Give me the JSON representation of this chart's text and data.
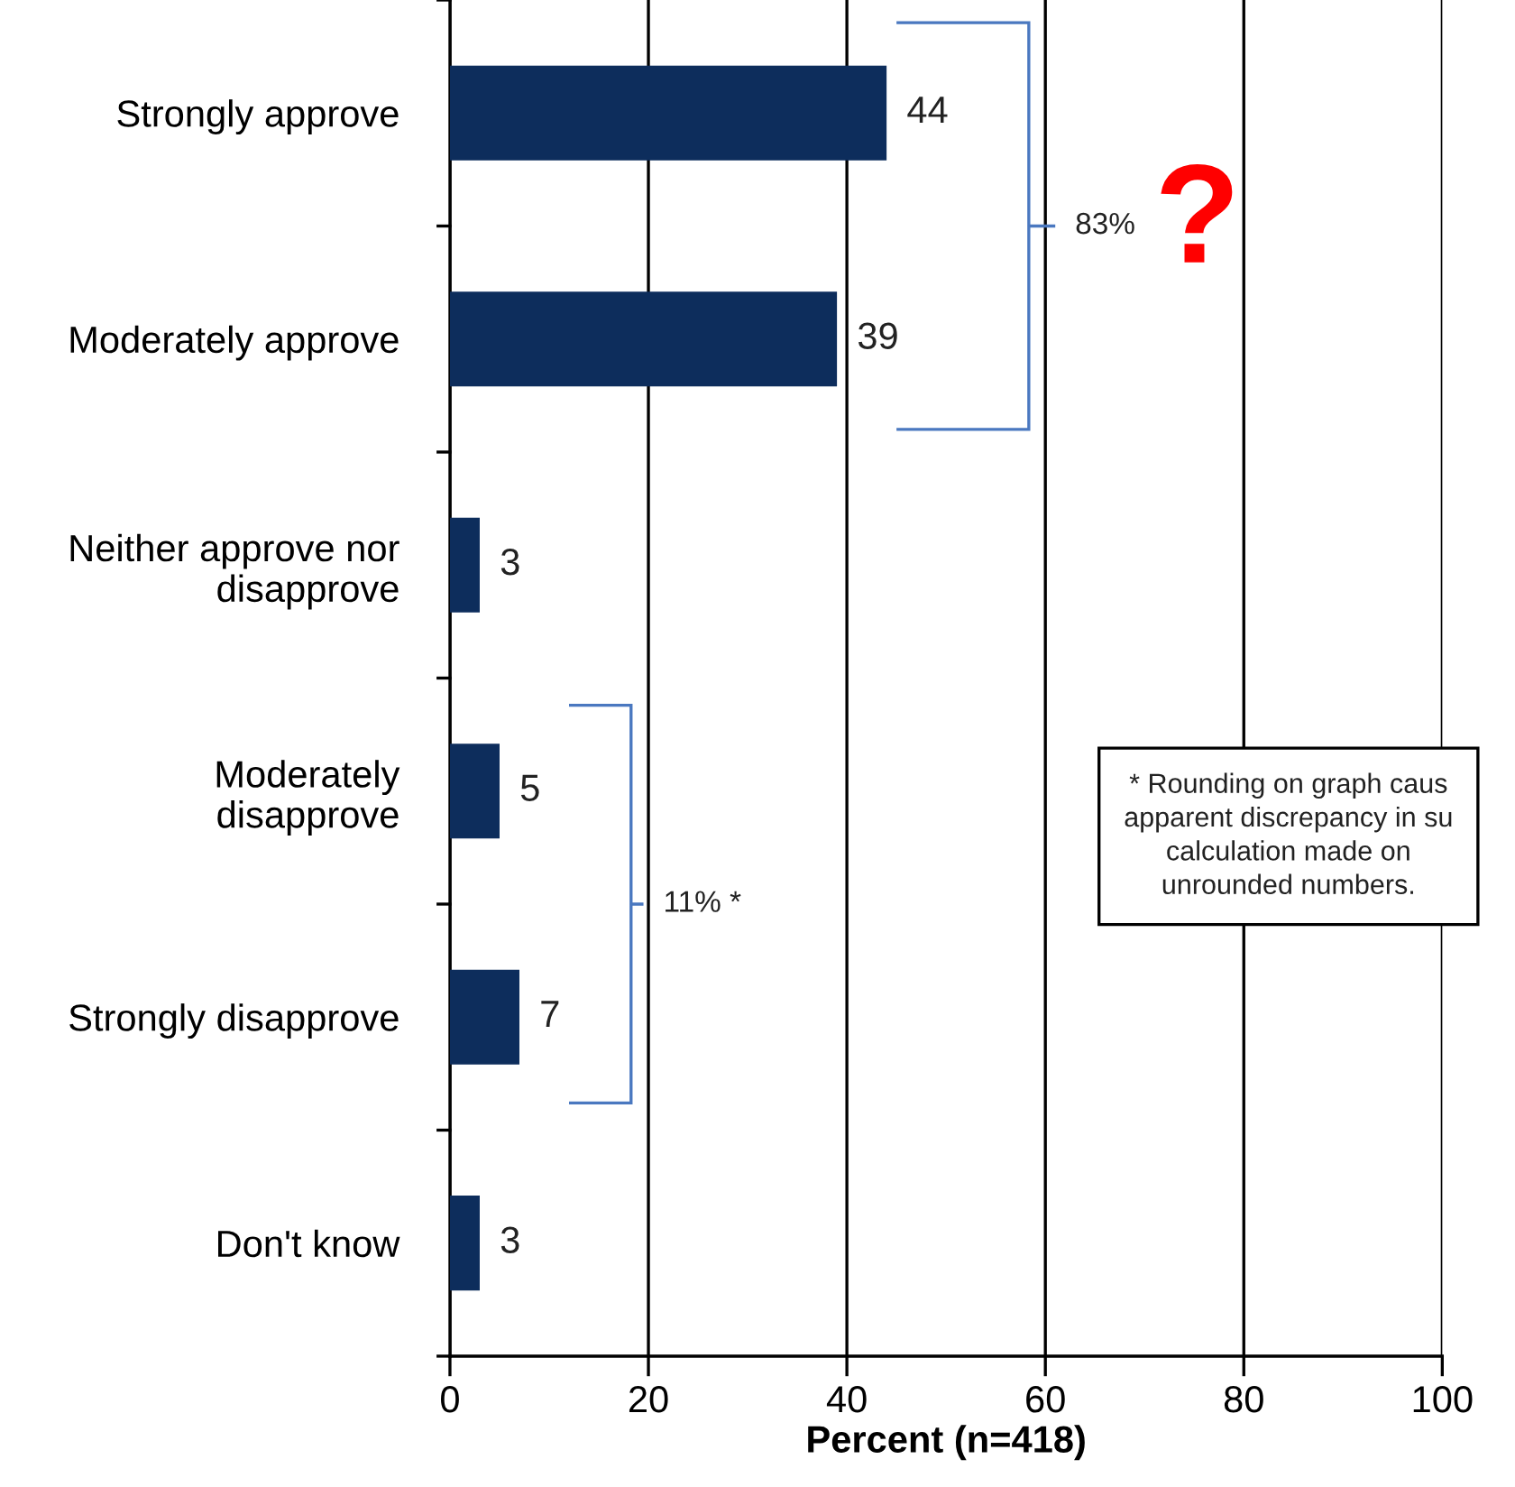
{
  "chart_data": {
    "type": "bar",
    "orientation": "horizontal",
    "categories": [
      "Strongly approve",
      "Moderately approve",
      "Neither approve nor\ndisapprove",
      "Moderately\ndisapprove",
      "Strongly disapprove",
      "Don't know"
    ],
    "values": [
      44,
      39,
      3,
      5,
      7,
      3
    ],
    "color": "#0d2d5c",
    "data_labels": true,
    "xlabel": "Percent (n=418)",
    "xlim": [
      0,
      100
    ],
    "xticks": [
      0,
      20,
      40,
      60,
      80,
      100
    ],
    "grid": "x",
    "annotations": [
      "83%",
      "?",
      "11% *",
      "* Rounding on graph caus\napparent discrepancy in su\ncalculation made on\nunrounded numbers."
    ]
  }
}
